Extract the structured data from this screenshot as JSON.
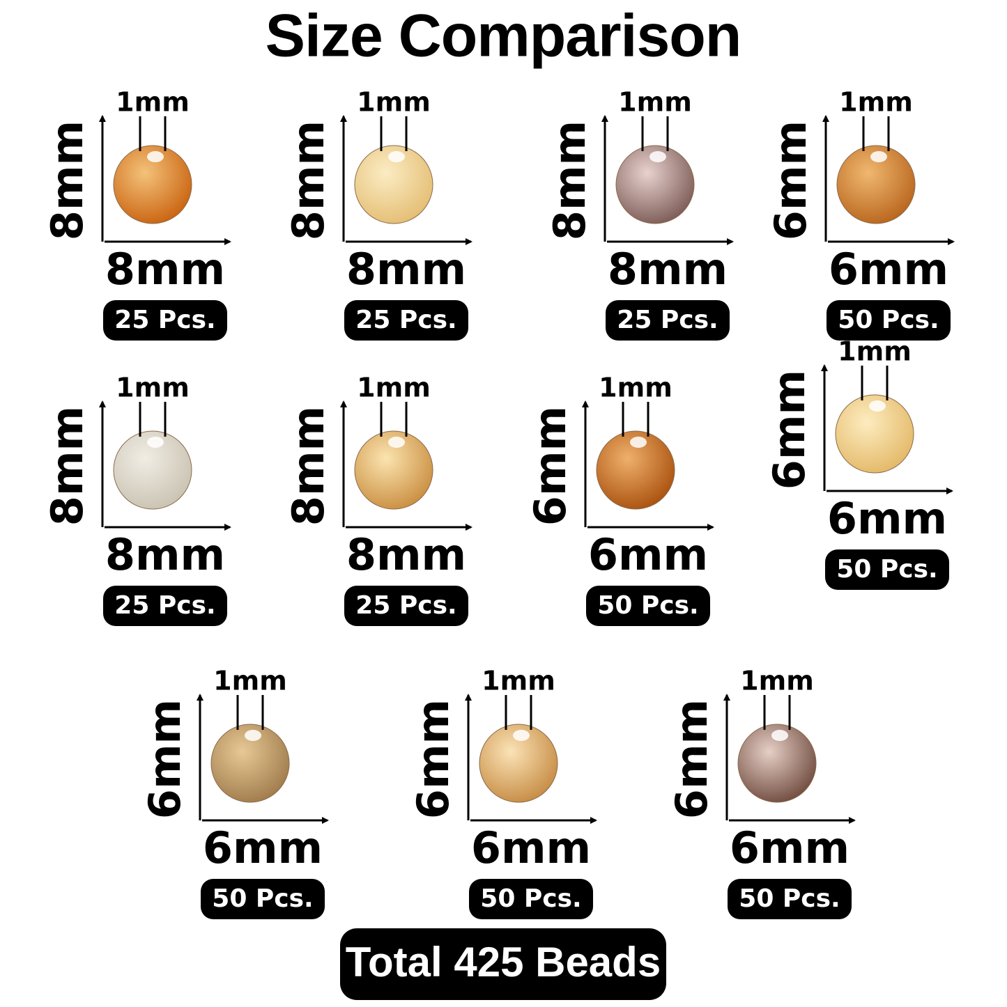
{
  "title": "Size Comparison",
  "items": [
    {
      "hole": "1mm",
      "height": "8mm",
      "width": "8mm",
      "count": "25 Pcs."
    },
    {
      "hole": "1mm",
      "height": "8mm",
      "width": "8mm",
      "count": "25 Pcs."
    },
    {
      "hole": "1mm",
      "height": "8mm",
      "width": "8mm",
      "count": "25 Pcs."
    },
    {
      "hole": "1mm",
      "height": "6mm",
      "width": "6mm",
      "count": "50 Pcs."
    },
    {
      "hole": "1mm",
      "height": "8mm",
      "width": "8mm",
      "count": "25 Pcs."
    },
    {
      "hole": "1mm",
      "height": "8mm",
      "width": "8mm",
      "count": "25 Pcs."
    },
    {
      "hole": "1mm",
      "height": "6mm",
      "width": "6mm",
      "count": "50 Pcs."
    },
    {
      "hole": "1mm",
      "height": "6mm",
      "width": "6mm",
      "count": "50 Pcs."
    },
    {
      "hole": "1mm",
      "height": "6mm",
      "width": "6mm",
      "count": "50 Pcs."
    },
    {
      "hole": "1mm",
      "height": "6mm",
      "width": "6mm",
      "count": "50 Pcs."
    },
    {
      "hole": "1mm",
      "height": "6mm",
      "width": "6mm",
      "count": "50 Pcs."
    }
  ],
  "total": "Total 425 Beads"
}
